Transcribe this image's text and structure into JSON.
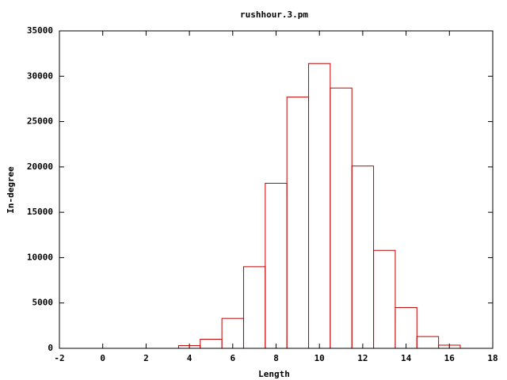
{
  "chart_data": {
    "type": "histogram",
    "title": "rushhour.3.pm",
    "x_label": "Length",
    "y_label": "In-degree",
    "bins": [
      3.5,
      4,
      4.5,
      5.5,
      6.5,
      7.5,
      8.5,
      9.5,
      10.5,
      11.5,
      12.5,
      13.5,
      14.5,
      15.5,
      16,
      16.5
    ],
    "values": [
      300,
      300,
      1000,
      3300,
      9000,
      18200,
      27700,
      31400,
      28700,
      20100,
      10800,
      4500,
      1300,
      350,
      350
    ],
    "color": "#c00000",
    "xlim": [
      -2,
      18
    ],
    "xticks": [
      -2,
      0,
      2,
      4,
      6,
      8,
      10,
      12,
      14,
      16,
      18
    ],
    "ylim": [
      0,
      35000
    ],
    "yticks": [
      0,
      5000,
      10000,
      15000,
      20000,
      25000,
      30000,
      35000
    ]
  }
}
